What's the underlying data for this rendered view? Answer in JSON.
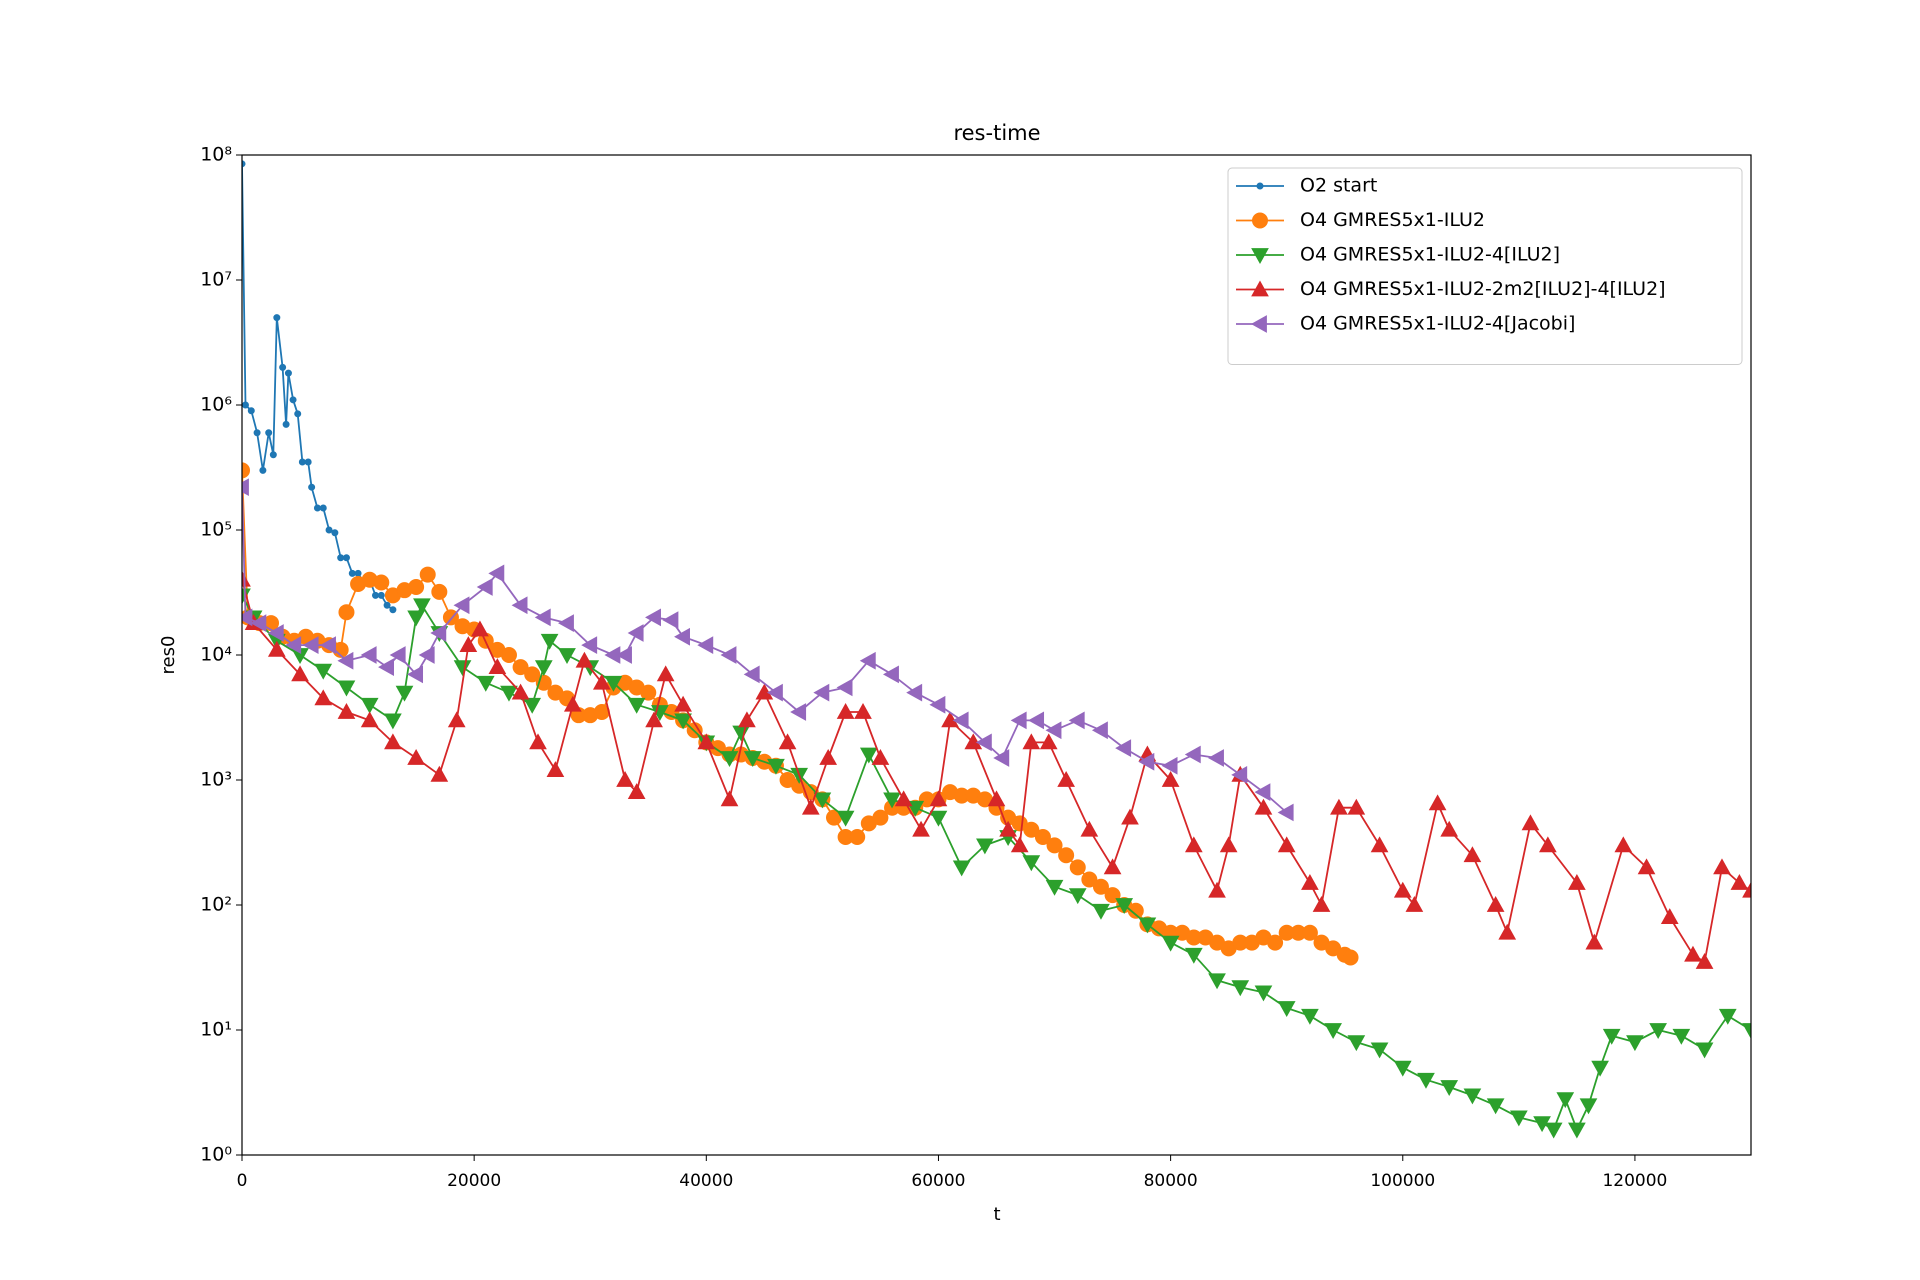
{
  "chart_data": {
    "type": "line",
    "title": "res-time",
    "xlabel": "t",
    "ylabel": "res0",
    "xlim": [
      0,
      130000
    ],
    "xticks": [
      0,
      20000,
      40000,
      60000,
      80000,
      100000,
      120000
    ],
    "ylim": [
      1,
      100000000
    ],
    "log_y": true,
    "yticks": [
      {
        "value": 1,
        "label": "10⁰"
      },
      {
        "value": 10,
        "label": "10¹"
      },
      {
        "value": 100,
        "label": "10²"
      },
      {
        "value": 1000,
        "label": "10³"
      },
      {
        "value": 10000,
        "label": "10⁴"
      },
      {
        "value": 100000,
        "label": "10⁵"
      },
      {
        "value": 1000000,
        "label": "10⁶"
      },
      {
        "value": 10000000,
        "label": "10⁷"
      },
      {
        "value": 100000000,
        "label": "10⁸"
      }
    ],
    "legend": "upper right",
    "series": [
      {
        "name": "O2 start",
        "color": "#1f77b4",
        "marker": "dot",
        "x": [
          0,
          300,
          800,
          1300,
          1800,
          2300,
          2700,
          3000,
          3500,
          3800,
          4000,
          4400,
          4800,
          5200,
          5700,
          6000,
          6500,
          7000,
          7500,
          8000,
          8500,
          9000,
          9500,
          10000,
          10500,
          11000,
          11500,
          12000,
          12500,
          13000
        ],
        "values": [
          85000000,
          1000000,
          900000,
          600000,
          300000,
          600000,
          400000,
          5000000,
          2000000,
          700000,
          1800000,
          1100000,
          850000,
          350000,
          350000,
          220000,
          150000,
          150000,
          100000,
          95000,
          60000,
          60000,
          45000,
          45000,
          38000,
          40000,
          30000,
          30000,
          25000,
          23000
        ]
      },
      {
        "name": "O4 GMRES5x1-ILU2",
        "color": "#ff7f0e",
        "marker": "circle",
        "x": [
          0,
          500,
          1500,
          2500,
          3500,
          4500,
          5500,
          6500,
          7500,
          8500,
          9000,
          10000,
          11000,
          12000,
          13000,
          14000,
          15000,
          16000,
          17000,
          18000,
          19000,
          20000,
          21000,
          22000,
          23000,
          24000,
          25000,
          26000,
          27000,
          28000,
          29000,
          30000,
          31000,
          32000,
          33000,
          34000,
          35000,
          36000,
          37000,
          38000,
          39000,
          40000,
          41000,
          42000,
          43000,
          44000,
          45000,
          46000,
          47000,
          48000,
          49000,
          50000,
          51000,
          52000,
          53000,
          54000,
          55000,
          56000,
          57000,
          58000,
          59000,
          60000,
          61000,
          62000,
          63000,
          64000,
          65000,
          66000,
          67000,
          68000,
          69000,
          70000,
          71000,
          72000,
          73000,
          74000,
          75000,
          76000,
          77000,
          78000,
          79000,
          80000,
          81000,
          82000,
          83000,
          84000,
          85000,
          86000,
          87000,
          88000,
          89000,
          90000,
          91000,
          92000,
          93000,
          94000,
          95000,
          95500
        ],
        "values": [
          300000,
          20000,
          18000,
          18000,
          14000,
          13000,
          14000,
          13000,
          12000,
          11000,
          22000,
          37000,
          40000,
          38000,
          30000,
          33000,
          35000,
          44000,
          32000,
          20000,
          17000,
          16000,
          13000,
          11000,
          10000,
          8000,
          7000,
          6000,
          5000,
          4500,
          3300,
          3300,
          3500,
          5500,
          6000,
          5500,
          5000,
          4000,
          3500,
          3000,
          2500,
          2000,
          1800,
          1600,
          1600,
          1500,
          1400,
          1300,
          1000,
          900,
          800,
          700,
          500,
          350,
          350,
          450,
          500,
          600,
          600,
          600,
          700,
          700,
          800,
          750,
          750,
          700,
          600,
          500,
          450,
          400,
          350,
          300,
          250,
          200,
          160,
          140,
          120,
          100,
          90,
          70,
          65,
          60,
          60,
          55,
          55,
          50,
          45,
          50,
          50,
          55,
          50,
          60,
          60,
          60,
          50,
          45,
          40,
          38
        ]
      },
      {
        "name": "O4 GMRES5x1-ILU2-4[ILU2]",
        "color": "#2ca02c",
        "marker": "tri-down",
        "x": [
          0,
          1000,
          3000,
          5000,
          7000,
          9000,
          11000,
          13000,
          14000,
          15000,
          15500,
          17000,
          19000,
          21000,
          23000,
          25000,
          26000,
          26500,
          28000,
          30000,
          32000,
          34000,
          36000,
          38000,
          40000,
          42000,
          43000,
          44000,
          46000,
          48000,
          50000,
          52000,
          54000,
          56000,
          58000,
          60000,
          62000,
          64000,
          66000,
          68000,
          70000,
          72000,
          74000,
          76000,
          78000,
          80000,
          82000,
          84000,
          86000,
          88000,
          90000,
          92000,
          94000,
          96000,
          98000,
          100000,
          102000,
          104000,
          106000,
          108000,
          110000,
          112000,
          113000,
          114000,
          115000,
          116000,
          117000,
          118000,
          120000,
          122000,
          124000,
          126000,
          128000,
          130000
        ],
        "values": [
          30000,
          20000,
          13000,
          10000,
          7500,
          5500,
          4000,
          3000,
          5000,
          20000,
          25000,
          15000,
          8000,
          6000,
          5000,
          4000,
          8000,
          13000,
          10000,
          8000,
          6000,
          4000,
          3500,
          3000,
          2000,
          1500,
          2400,
          1500,
          1300,
          1100,
          700,
          500,
          1600,
          700,
          600,
          500,
          200,
          300,
          350,
          220,
          140,
          120,
          90,
          100,
          70,
          50,
          40,
          25,
          22,
          20,
          15,
          13,
          10,
          8,
          7,
          5,
          4,
          3.5,
          3,
          2.5,
          2,
          1.8,
          1.6,
          2.8,
          1.6,
          2.5,
          5,
          9,
          8,
          10,
          9,
          7,
          13,
          10
        ]
      },
      {
        "name": "O4 GMRES5x1-ILU2-2m2[ILU2]-4[ILU2]",
        "color": "#d62728",
        "marker": "tri-up",
        "x": [
          0,
          1000,
          3000,
          5000,
          7000,
          9000,
          11000,
          13000,
          15000,
          17000,
          18500,
          19500,
          20500,
          22000,
          24000,
          25500,
          27000,
          28500,
          29500,
          31000,
          33000,
          34000,
          35500,
          36500,
          38000,
          40000,
          42000,
          43500,
          45000,
          47000,
          49000,
          50500,
          52000,
          53500,
          55000,
          57000,
          58500,
          60000,
          61000,
          63000,
          65000,
          66000,
          67000,
          68000,
          69500,
          71000,
          73000,
          75000,
          76500,
          78000,
          80000,
          82000,
          84000,
          85000,
          86000,
          88000,
          90000,
          92000,
          93000,
          94500,
          96000,
          98000,
          100000,
          101000,
          103000,
          104000,
          106000,
          108000,
          109000,
          111000,
          112500,
          115000,
          116500,
          119000,
          121000,
          123000,
          125000,
          126000,
          127500,
          129000,
          130000
        ],
        "values": [
          40000,
          18000,
          11000,
          7000,
          4500,
          3500,
          3000,
          2000,
          1500,
          1100,
          3000,
          12000,
          16000,
          8000,
          5000,
          2000,
          1200,
          4000,
          9000,
          6000,
          1000,
          800,
          3000,
          7000,
          4000,
          2000,
          700,
          3000,
          5000,
          2000,
          600,
          1500,
          3500,
          3500,
          1500,
          700,
          400,
          700,
          3000,
          2000,
          700,
          400,
          300,
          2000,
          2000,
          1000,
          400,
          200,
          500,
          1600,
          1000,
          300,
          130,
          300,
          1100,
          600,
          300,
          150,
          100,
          600,
          600,
          300,
          130,
          100,
          650,
          400,
          250,
          100,
          60,
          450,
          300,
          150,
          50,
          300,
          200,
          80,
          40,
          35,
          200,
          150,
          130
        ]
      },
      {
        "name": "O4 GMRES5x1-ILU2-4[Jacobi]",
        "color": "#9467bd",
        "marker": "tri-left",
        "x": [
          0,
          300,
          1500,
          3000,
          4500,
          6000,
          7500,
          9000,
          11000,
          12500,
          13500,
          15000,
          16000,
          17000,
          19000,
          21000,
          22000,
          24000,
          26000,
          28000,
          30000,
          32000,
          33000,
          34000,
          35500,
          37000,
          38000,
          40000,
          42000,
          44000,
          46000,
          48000,
          50000,
          52000,
          54000,
          56000,
          58000,
          60000,
          62000,
          64000,
          65500,
          67000,
          68500,
          70000,
          72000,
          74000,
          76000,
          78000,
          80000,
          82000,
          84000,
          86000,
          88000,
          90000
        ],
        "values": [
          220000,
          20000,
          18000,
          15000,
          12000,
          12000,
          12000,
          9000,
          10000,
          8000,
          10000,
          7000,
          10000,
          15000,
          25000,
          35000,
          45000,
          25000,
          20000,
          18000,
          12000,
          10000,
          10000,
          15000,
          20000,
          19000,
          14000,
          12000,
          10000,
          7000,
          5000,
          3500,
          5000,
          5500,
          9000,
          7000,
          5000,
          4000,
          3000,
          2000,
          1500,
          3000,
          3000,
          2500,
          3000,
          2500,
          1800,
          1400,
          1300,
          1600,
          1500,
          1100,
          800,
          550
        ]
      }
    ]
  }
}
